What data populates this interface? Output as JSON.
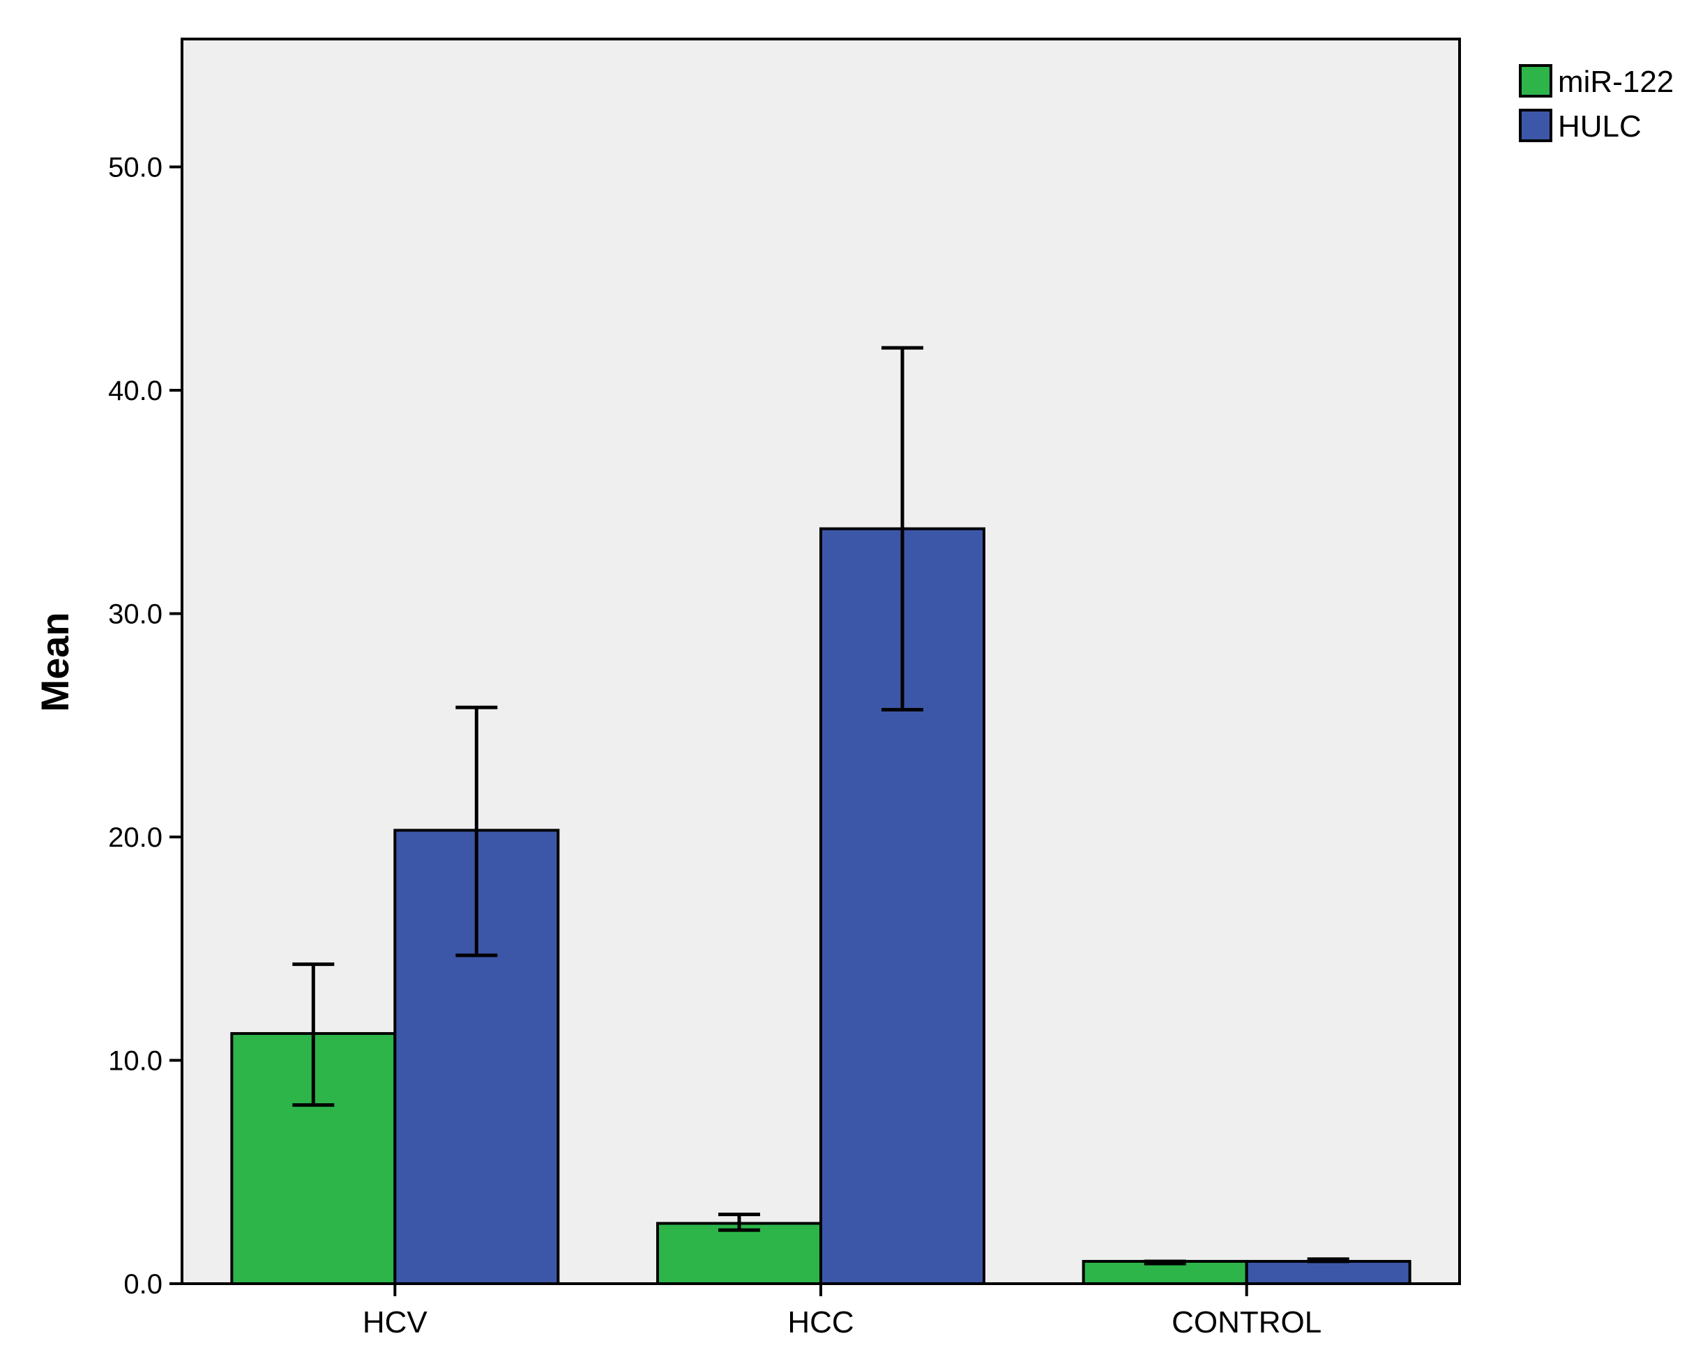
{
  "colors": {
    "plot_background": "#efefef",
    "miR-122": "#2db54a",
    "HULC": "#3d57a8",
    "axis": "#000000",
    "error_bar": "#000000"
  },
  "chart_data": {
    "type": "bar",
    "title": "",
    "xlabel": "",
    "ylabel": "Mean",
    "ylim": [
      0,
      55.7
    ],
    "yticks": [
      "0.0",
      "10.0",
      "20.0",
      "30.0",
      "40.0",
      "50.0"
    ],
    "categories": [
      "HCV",
      "HCC",
      "CONTROL"
    ],
    "series": [
      {
        "name": "miR-122",
        "values": [
          11.2,
          2.7,
          1.0
        ],
        "err_low": [
          8.0,
          2.4,
          0.9
        ],
        "err_high": [
          14.3,
          3.1,
          1.0
        ]
      },
      {
        "name": "HULC",
        "values": [
          20.3,
          33.8,
          1.0
        ],
        "err_low": [
          14.7,
          25.7,
          1.0
        ],
        "err_high": [
          25.8,
          41.9,
          1.1
        ]
      }
    ],
    "legend": "top-right",
    "grid": false,
    "error_bars": true
  }
}
